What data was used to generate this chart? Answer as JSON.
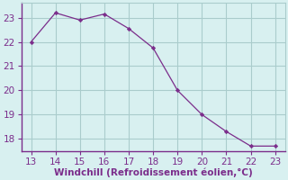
{
  "x": [
    13,
    14,
    15,
    16,
    17,
    18,
    19,
    20,
    21,
    22,
    23
  ],
  "y": [
    22.0,
    23.2,
    22.9,
    23.15,
    22.55,
    21.75,
    20.0,
    19.0,
    18.3,
    17.7,
    17.7
  ],
  "line_color": "#7b2d8b",
  "marker_color": "#7b2d8b",
  "bg_color": "#d8f0f0",
  "grid_color": "#aacccc",
  "xlabel": "Windchill (Refroidissement éolien,°C)",
  "xlabel_color": "#7b2d8b",
  "tick_color": "#7b2d8b",
  "spine_color": "#7b2d8b",
  "xlim": [
    12.6,
    23.4
  ],
  "ylim": [
    17.5,
    23.6
  ],
  "yticks": [
    18,
    19,
    20,
    21,
    22,
    23
  ],
  "xticks": [
    13,
    14,
    15,
    16,
    17,
    18,
    19,
    20,
    21,
    22,
    23
  ],
  "axis_fontsize": 7.5,
  "tick_fontsize": 7.5
}
